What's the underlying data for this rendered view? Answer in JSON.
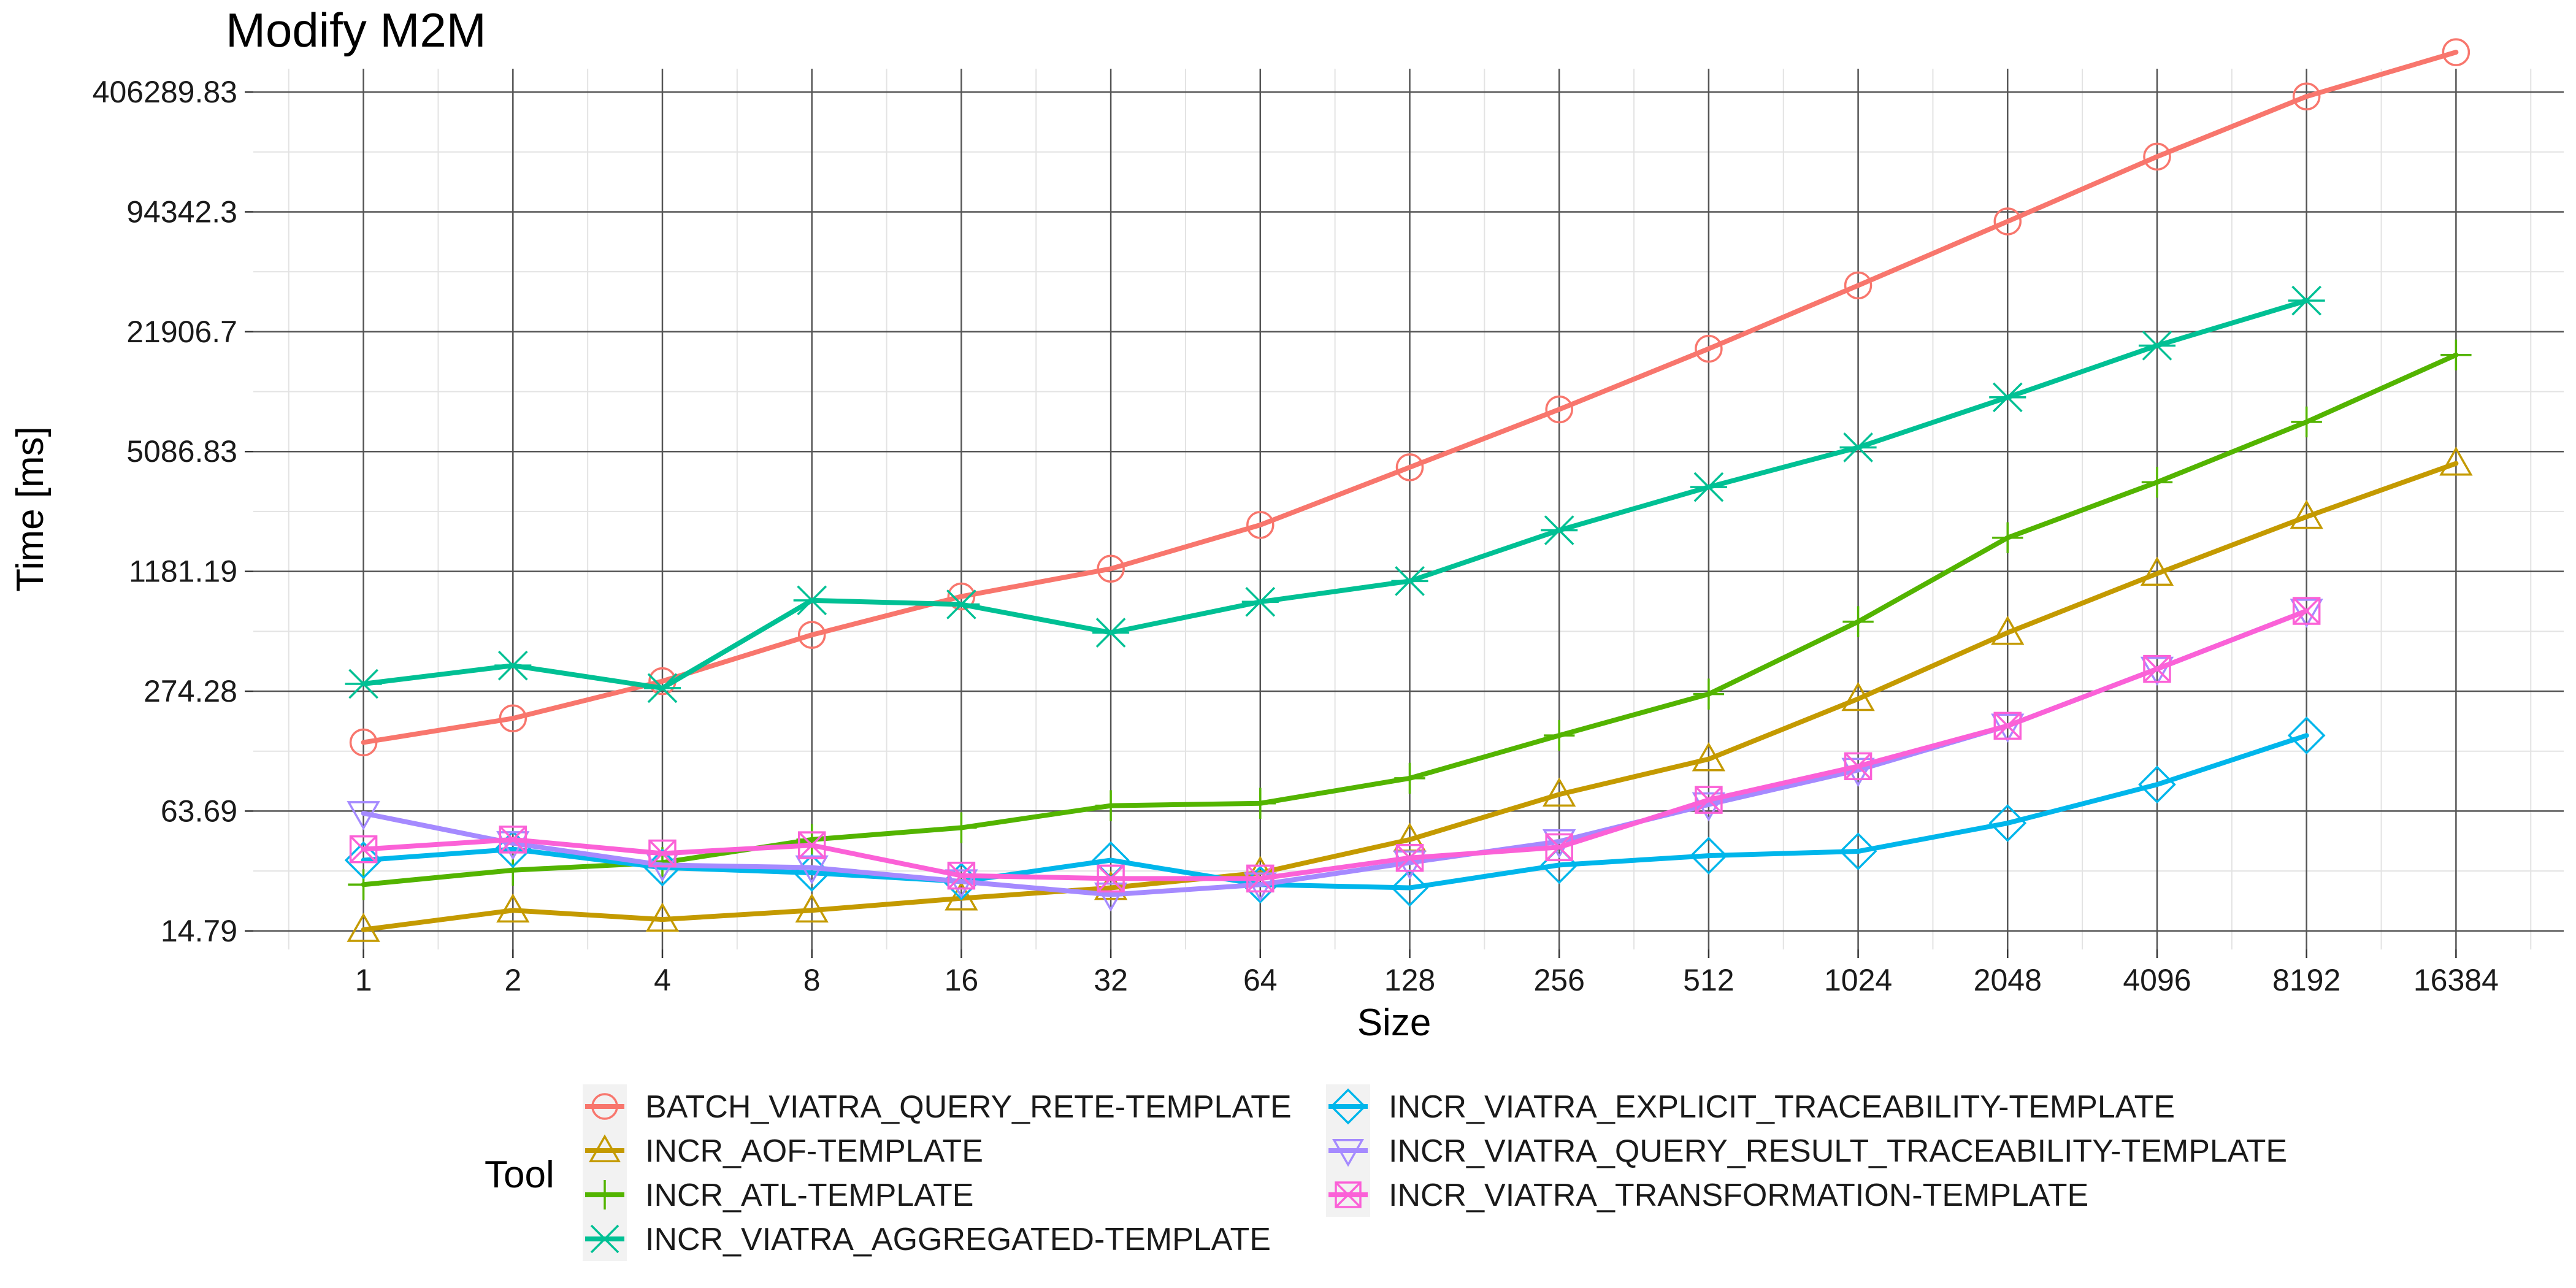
{
  "chart_data": {
    "type": "line",
    "title": "Modify M2M",
    "xlabel": "Size",
    "ylabel": "Time [ms]",
    "x_scale": "log2",
    "y_scale": "log",
    "categories": [
      "1",
      "2",
      "4",
      "8",
      "16",
      "32",
      "64",
      "128",
      "256",
      "512",
      "1024",
      "2048",
      "4096",
      "8192",
      "16384"
    ],
    "x": [
      1,
      2,
      4,
      8,
      16,
      32,
      64,
      128,
      256,
      512,
      1024,
      2048,
      4096,
      8192,
      16384
    ],
    "ytick_values": [
      14.79,
      63.69,
      274.28,
      1181.19,
      5086.83,
      21906.7,
      94342.3,
      406289.83
    ],
    "ytick_labels": [
      "14.79",
      "63.69",
      "274.28",
      "1181.19",
      "5086.83",
      "21906.7",
      "94342.3",
      "406289.83"
    ],
    "xlim": [
      0.6,
      27000
    ],
    "ylim": [
      11.8,
      540000
    ],
    "grid": true,
    "legend": {
      "title": "Tool",
      "position": "bottom",
      "columns": 2
    },
    "series": [
      {
        "name": "BATCH_VIATRA_QUERY_RETE-TEMPLATE",
        "color": "#F8766D",
        "marker": "circle",
        "values": [
          147,
          197,
          310,
          545,
          870,
          1220,
          2080,
          4200,
          8500,
          17800,
          38500,
          84000,
          185000,
          385000,
          660000
        ]
      },
      {
        "name": "INCR_AOF-TEMPLATE",
        "color": "#C49A00",
        "marker": "triangle",
        "values": [
          15,
          19,
          17,
          19,
          22,
          25,
          30,
          45,
          78,
          120,
          250,
          560,
          1150,
          2300,
          4400
        ]
      },
      {
        "name": "INCR_ATL-TEMPLATE",
        "color": "#53B400",
        "marker": "plus",
        "values": [
          26,
          31,
          34,
          45,
          52,
          68,
          70,
          95,
          160,
          265,
          640,
          1780,
          3500,
          7300,
          16500
        ]
      },
      {
        "name": "INCR_VIATRA_AGGREGATED-TEMPLATE",
        "color": "#00C094",
        "marker": "asterisk",
        "values": [
          300,
          375,
          285,
          830,
          790,
          560,
          815,
          1050,
          1950,
          3300,
          5350,
          9850,
          18500,
          32000,
          null
        ]
      },
      {
        "name": "INCR_VIATRA_EXPLICIT_TRACEABILITY-TEMPLATE",
        "color": "#00B6EB",
        "marker": "diamond",
        "values": [
          35,
          40,
          32,
          30,
          27,
          35,
          26,
          25,
          33,
          37,
          39,
          55,
          88,
          160,
          null
        ]
      },
      {
        "name": "INCR_VIATRA_QUERY_RESULT_TRACEABILITY-TEMPLATE",
        "color": "#A58AFF",
        "marker": "triangle-down",
        "values": [
          62,
          43,
          33,
          32,
          27,
          23,
          26,
          34,
          44,
          69,
          105,
          180,
          360,
          730,
          null
        ]
      },
      {
        "name": "INCR_VIATRA_TRANSFORMATION-TEMPLATE",
        "color": "#FB61D7",
        "marker": "box-x",
        "values": [
          40,
          45,
          38,
          42,
          29,
          28,
          28,
          36,
          41,
          73,
          110,
          180,
          360,
          730,
          null
        ]
      }
    ]
  }
}
